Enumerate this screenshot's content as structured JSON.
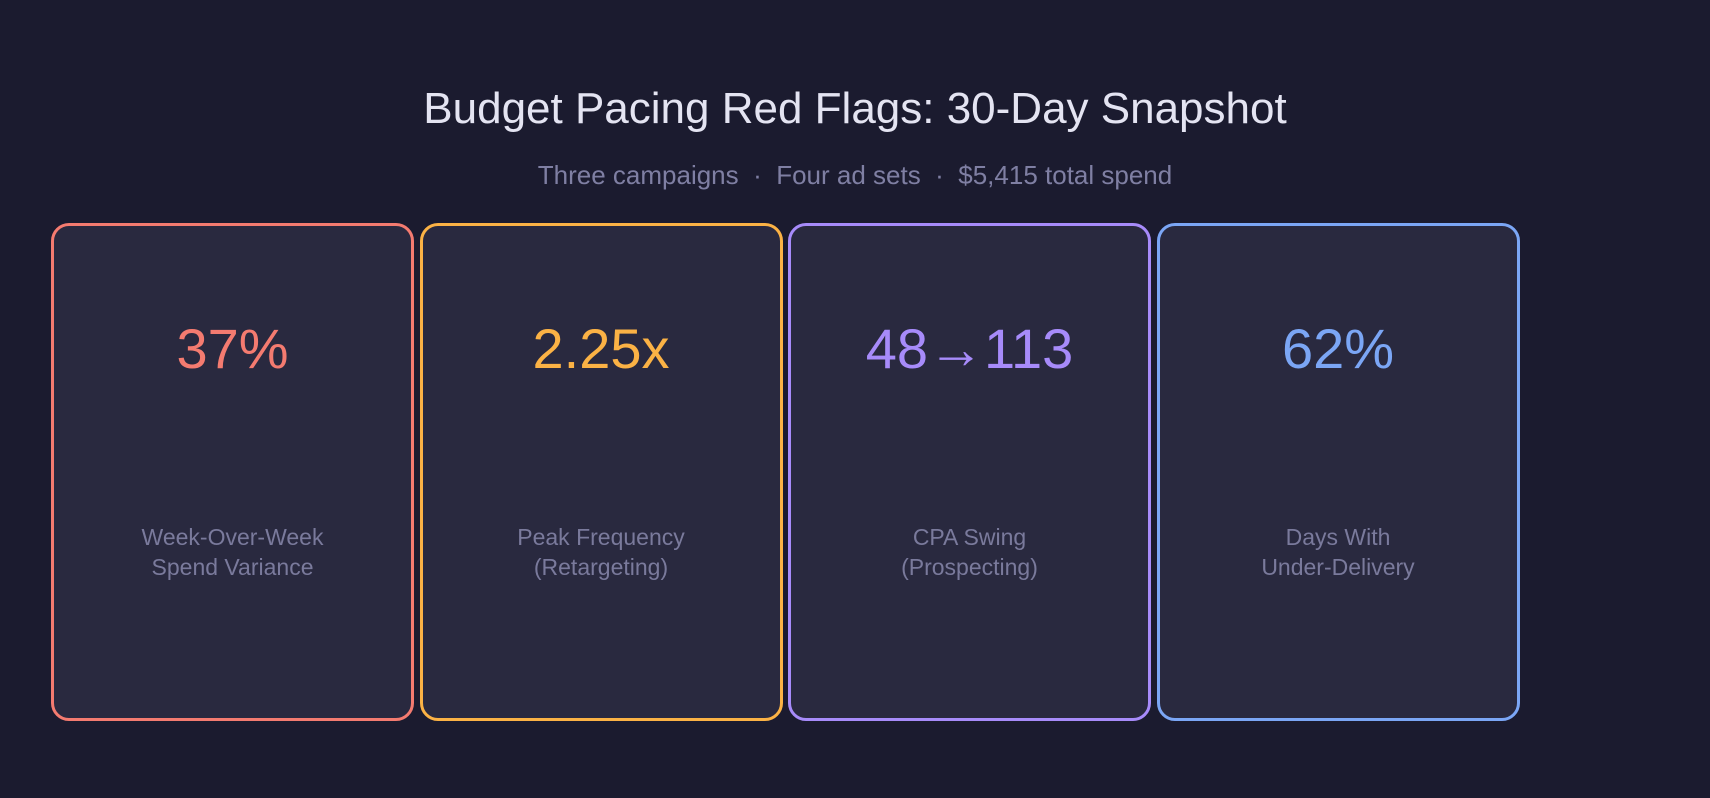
{
  "header": {
    "title": "Budget Pacing Red Flags: 30-Day Snapshot",
    "subtitle": "Three campaigns  ·  Four ad sets  ·  $5,415 total spend"
  },
  "cards": [
    {
      "value": "37%",
      "label": [
        "Week-Over-Week",
        "Spend Variance"
      ],
      "color": "#f47b70"
    },
    {
      "value": "2.25x",
      "label": [
        "Peak Frequency",
        "(Retargeting)"
      ],
      "color": "#fbb245"
    },
    {
      "value": "48→113",
      "label": [
        "CPA Swing",
        "(Prospecting)"
      ],
      "color": "#a78bfa"
    },
    {
      "value": "62%",
      "label": [
        "Days With",
        "Under-Delivery"
      ],
      "color": "#7ba6f5"
    }
  ]
}
